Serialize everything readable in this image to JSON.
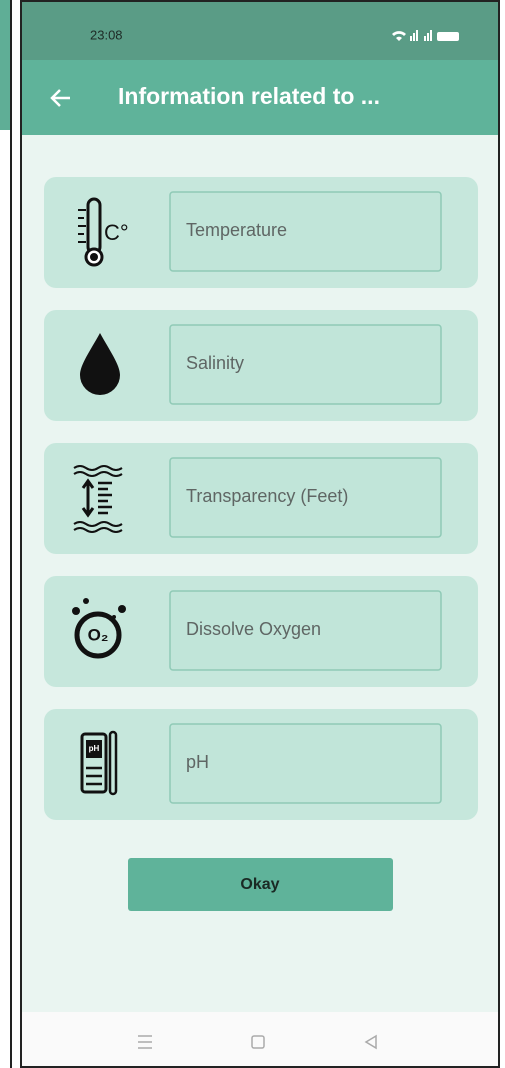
{
  "status": {
    "time": "23:08"
  },
  "header": {
    "title": "Information related to ..."
  },
  "fields": [
    {
      "icon_text": "C°",
      "label": "Temperature"
    },
    {
      "label": "Salinity"
    },
    {
      "label": "Transparency (Feet)"
    },
    {
      "icon_text": "O₂",
      "label": "Dissolve Oxygen"
    },
    {
      "icon_text": "pH",
      "label": "pH"
    }
  ],
  "button": {
    "label": "Okay"
  }
}
